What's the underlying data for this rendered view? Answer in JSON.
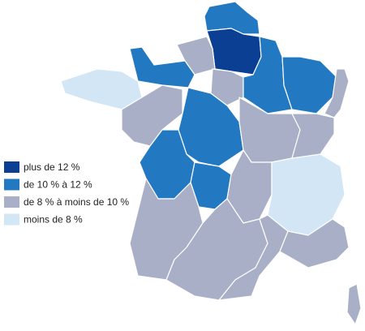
{
  "legend": {
    "items": [
      {
        "label": "plus de 12 %",
        "color": "#0b3f93"
      },
      {
        "label": "de 10 % à 12 %",
        "color": "#2379c1"
      },
      {
        "label": "de 8 % à moins de 10 %",
        "color": "#a8afc6"
      },
      {
        "label": "moins de 8 %",
        "color": "#d2e6f5"
      }
    ]
  }
}
